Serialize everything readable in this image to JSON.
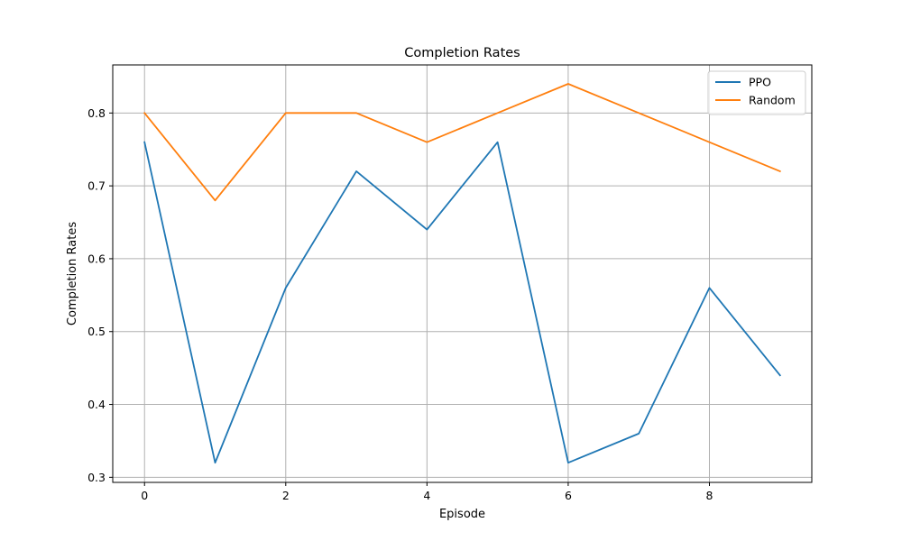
{
  "chart_data": {
    "type": "line",
    "title": "Completion Rates",
    "xlabel": "Episode",
    "ylabel": "Completion Rates",
    "x": [
      0,
      1,
      2,
      3,
      4,
      5,
      6,
      7,
      8,
      9
    ],
    "xlim": [
      -0.45,
      9.45
    ],
    "ylim": [
      0.293,
      0.866
    ],
    "xticks": [
      0,
      2,
      4,
      6,
      8
    ],
    "xtick_labels": [
      "0",
      "2",
      "4",
      "6",
      "8"
    ],
    "yticks": [
      0.3,
      0.4,
      0.5,
      0.6,
      0.7,
      0.8
    ],
    "ytick_labels": [
      "0.3",
      "0.4",
      "0.5",
      "0.6",
      "0.7",
      "0.8"
    ],
    "grid": true,
    "legend_position": "top-right",
    "series": [
      {
        "name": "PPO",
        "color": "#1f77b4",
        "values": [
          0.76,
          0.32,
          0.56,
          0.72,
          0.64,
          0.76,
          0.32,
          0.36,
          0.56,
          0.44
        ]
      },
      {
        "name": "Random",
        "color": "#ff7f0e",
        "values": [
          0.8,
          0.68,
          0.8,
          0.8,
          0.76,
          0.8,
          0.84,
          0.8,
          0.76,
          0.72
        ]
      }
    ]
  }
}
